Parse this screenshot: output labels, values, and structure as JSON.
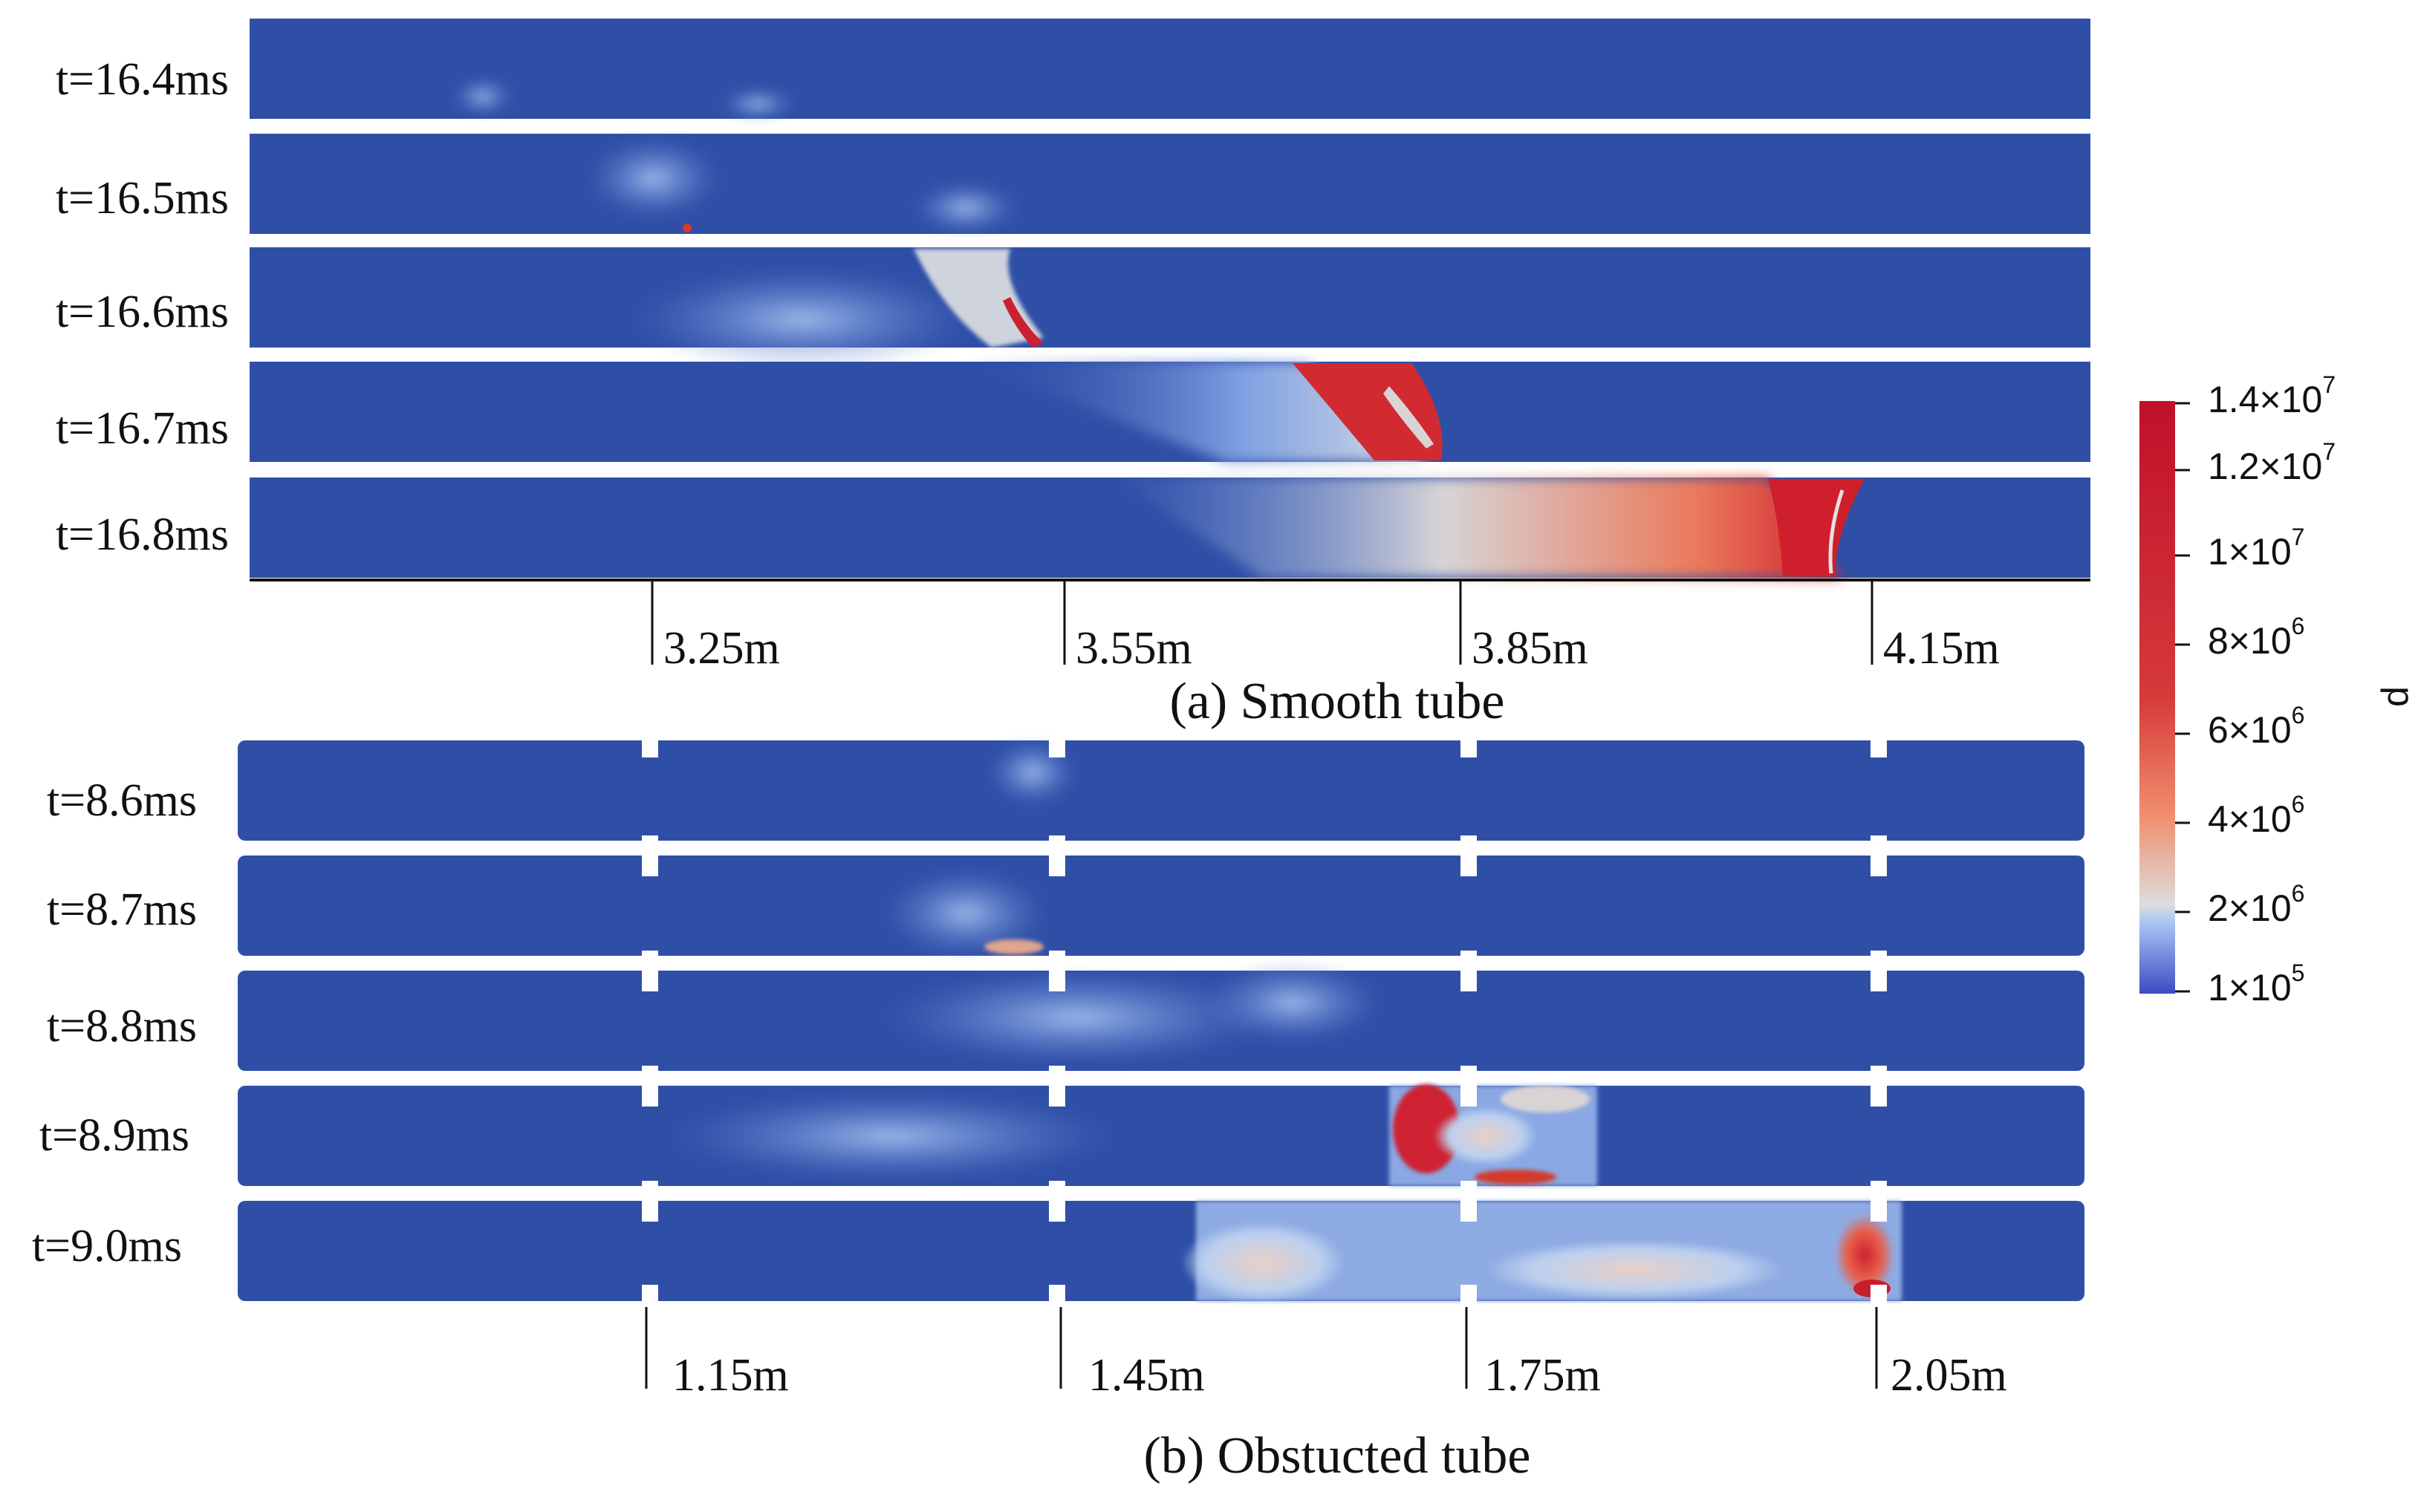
{
  "panel_a": {
    "caption": "(a) Smooth tube",
    "frames": [
      {
        "time": "t=16.4ms"
      },
      {
        "time": "t=16.5ms"
      },
      {
        "time": "t=16.6ms"
      },
      {
        "time": "t=16.7ms"
      },
      {
        "time": "t=16.8ms"
      }
    ],
    "axis_ticks": [
      "3.25m",
      "3.55m",
      "3.85m",
      "4.15m"
    ]
  },
  "panel_b": {
    "caption": "(b) Obstucted tube",
    "frames": [
      {
        "time": "t=8.6ms"
      },
      {
        "time": "t=8.7ms"
      },
      {
        "time": "t=8.8ms"
      },
      {
        "time": "t=8.9ms"
      },
      {
        "time": "t=9.0ms"
      }
    ],
    "axis_ticks": [
      "1.15m",
      "1.45m",
      "1.75m",
      "2.05m"
    ]
  },
  "colorbar": {
    "title": "p",
    "ticks": [
      {
        "base": "1.4×10",
        "exp": "7"
      },
      {
        "base": "1.2×10",
        "exp": "7"
      },
      {
        "base": "1×10",
        "exp": "7"
      },
      {
        "base": "8×10",
        "exp": "6"
      },
      {
        "base": "6×10",
        "exp": "6"
      },
      {
        "base": "4×10",
        "exp": "6"
      },
      {
        "base": "2×10",
        "exp": "6"
      },
      {
        "base": "1×10",
        "exp": "5"
      }
    ],
    "colors": {
      "low": "#3b4cc0",
      "mid": "#dddddd",
      "high": "#b40426",
      "background": "#2f4fa7"
    }
  }
}
